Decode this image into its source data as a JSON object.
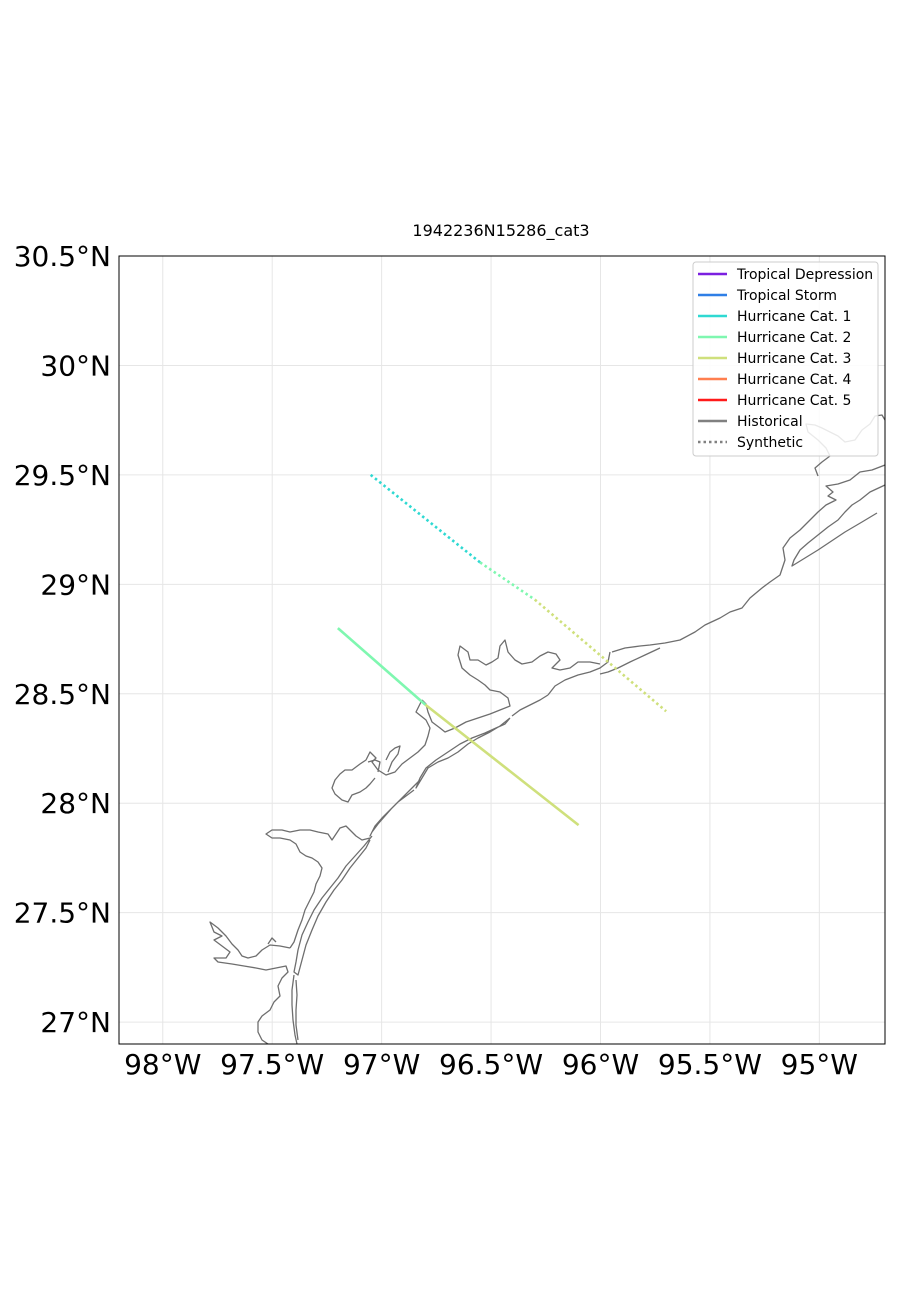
{
  "title": "1942236N15286_cat3",
  "map": {
    "lon_range": [
      -98.2,
      -94.7
    ],
    "lat_range": [
      26.9,
      30.5
    ],
    "lon_ticks": [
      -98,
      -97.5,
      -97,
      -96.5,
      -96,
      -95.5,
      -95
    ],
    "lat_ticks": [
      27,
      27.5,
      28,
      28.5,
      29,
      29.5,
      30,
      30.5
    ],
    "lon_tick_labels": [
      "98°W",
      "97.5°W",
      "97°W",
      "96.5°W",
      "96°W",
      "95.5°W",
      "95°W"
    ],
    "lat_tick_labels": [
      "27°N",
      "27.5°N",
      "28°N",
      "28.5°N",
      "29°N",
      "29.5°N",
      "30°N",
      "30.5°N"
    ],
    "coastline_color": "#6e6e6e",
    "grid": true
  },
  "legend": {
    "placement": "top-right",
    "items": [
      {
        "label": "Tropical Depression",
        "color": "#7b1fe0",
        "style": "solid"
      },
      {
        "label": "Tropical Storm",
        "color": "#2f7fe6",
        "style": "solid"
      },
      {
        "label": "Hurricane Cat. 1",
        "color": "#2fd9d2",
        "style": "solid"
      },
      {
        "label": "Hurricane Cat. 2",
        "color": "#7ff7b0",
        "style": "solid"
      },
      {
        "label": "Hurricane Cat. 3",
        "color": "#cfe07c",
        "style": "solid"
      },
      {
        "label": "Hurricane Cat. 4",
        "color": "#ff7f4f",
        "style": "solid"
      },
      {
        "label": "Hurricane Cat. 5",
        "color": "#ff1a1a",
        "style": "solid"
      },
      {
        "label": "Historical",
        "color": "#808080",
        "style": "solid"
      },
      {
        "label": "Synthetic",
        "color": "#808080",
        "style": "dotted"
      }
    ]
  },
  "tracks": [
    {
      "type": "historical",
      "segments": [
        {
          "from": [
            -97.2,
            28.8
          ],
          "to": [
            -96.8,
            28.45
          ],
          "color": "#7ff7b0"
        },
        {
          "from": [
            -96.8,
            28.45
          ],
          "to": [
            -96.1,
            27.9
          ],
          "color": "#cfe07c"
        }
      ]
    },
    {
      "type": "synthetic",
      "segments": [
        {
          "from": [
            -97.05,
            29.5
          ],
          "to": [
            -96.55,
            29.1
          ],
          "color": "#2fd9d2"
        },
        {
          "from": [
            -96.55,
            29.1
          ],
          "to": [
            -96.3,
            28.93
          ],
          "color": "#7ff7b0"
        },
        {
          "from": [
            -96.3,
            28.93
          ],
          "to": [
            -95.7,
            28.42
          ],
          "color": "#cfe07c"
        }
      ]
    }
  ]
}
